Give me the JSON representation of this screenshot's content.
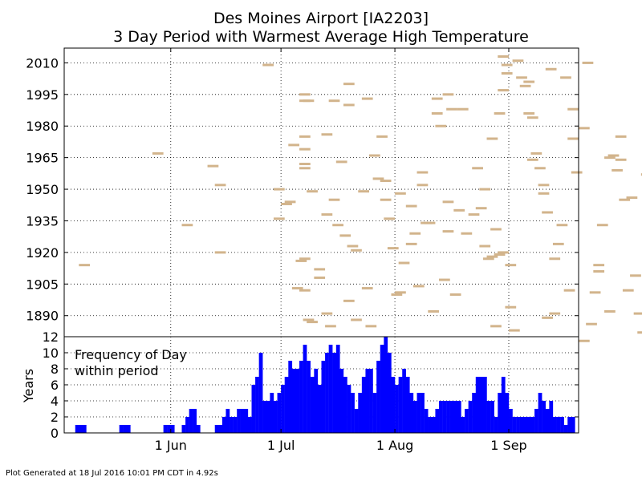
{
  "title_lines": [
    "Des Moines Airport [IA2203]",
    "3 Day Period with Warmest Average High Temperature"
  ],
  "footer": "Plot Generated at 18 Jul 2016 10:01 PM CDT in 4.92s",
  "colors": {
    "period_bar": "#d2b48c",
    "histogram": "#0000ff",
    "grid": "#000000"
  },
  "chart_data": [
    {
      "type": "scatter",
      "marker": "horizontal-bar (3-day period)",
      "x_axis": "day of year",
      "ylim": [
        1880,
        2017
      ],
      "yticks": [
        1890,
        1905,
        1920,
        1935,
        1950,
        1965,
        1980,
        1995,
        2010
      ],
      "ytick_labels": [
        "1890",
        "1905",
        "1920",
        "1935",
        "1950",
        "1965",
        "1980",
        "1995",
        "2010"
      ],
      "grid": true,
      "periods": [
        [
          127,
          1914
        ],
        [
          147,
          1967
        ],
        [
          155,
          1933
        ],
        [
          162,
          1961
        ],
        [
          164,
          1952
        ],
        [
          164,
          1920
        ],
        [
          177,
          2009
        ],
        [
          180,
          1936
        ],
        [
          180,
          1950
        ],
        [
          182,
          1943
        ],
        [
          183,
          1944
        ],
        [
          184,
          1971
        ],
        [
          185,
          1903
        ],
        [
          186,
          1916
        ],
        [
          187,
          1917
        ],
        [
          188,
          1888
        ],
        [
          187,
          1995
        ],
        [
          187,
          1992
        ],
        [
          187,
          1975
        ],
        [
          187,
          1969
        ],
        [
          187,
          1962
        ],
        [
          187,
          1960
        ],
        [
          187,
          1902
        ],
        [
          188,
          1992
        ],
        [
          189,
          1949
        ],
        [
          189,
          1887
        ],
        [
          191,
          1912
        ],
        [
          191,
          1908
        ],
        [
          193,
          1976
        ],
        [
          193,
          1938
        ],
        [
          193,
          1891
        ],
        [
          194,
          1885
        ],
        [
          195,
          1992
        ],
        [
          195,
          1945
        ],
        [
          196,
          1933
        ],
        [
          197,
          1963
        ],
        [
          198,
          1928
        ],
        [
          199,
          1897
        ],
        [
          199,
          2000
        ],
        [
          199,
          1990
        ],
        [
          200,
          1923
        ],
        [
          201,
          1921
        ],
        [
          201,
          1888
        ],
        [
          203,
          1949
        ],
        [
          204,
          1993
        ],
        [
          204,
          1903
        ],
        [
          205,
          1885
        ],
        [
          206,
          1966
        ],
        [
          207,
          1955
        ],
        [
          208,
          1975
        ],
        [
          209,
          1954
        ],
        [
          209,
          1945
        ],
        [
          210,
          1936
        ],
        [
          211,
          1922
        ],
        [
          212,
          1900
        ],
        [
          213,
          1948
        ],
        [
          213,
          1901
        ],
        [
          214,
          1915
        ],
        [
          216,
          1942
        ],
        [
          216,
          1924
        ],
        [
          217,
          1929
        ],
        [
          218,
          1904
        ],
        [
          219,
          1952
        ],
        [
          219,
          1958
        ],
        [
          220,
          1934
        ],
        [
          221,
          1934
        ],
        [
          222,
          1892
        ],
        [
          223,
          1993
        ],
        [
          223,
          1986
        ],
        [
          224,
          1980
        ],
        [
          225,
          1907
        ],
        [
          226,
          1930
        ],
        [
          226,
          1944
        ],
        [
          226,
          1995
        ],
        [
          227,
          1988
        ],
        [
          228,
          1900
        ],
        [
          229,
          1940
        ],
        [
          230,
          1988
        ],
        [
          231,
          1929
        ],
        [
          233,
          1938
        ],
        [
          234,
          1960
        ],
        [
          235,
          1941
        ],
        [
          236,
          1923
        ],
        [
          236,
          1950
        ],
        [
          237,
          1917
        ],
        [
          238,
          1918
        ],
        [
          238,
          1974
        ],
        [
          239,
          1931
        ],
        [
          239,
          1885
        ],
        [
          240,
          1919
        ],
        [
          240,
          1986
        ],
        [
          241,
          1997
        ],
        [
          241,
          1920
        ],
        [
          241,
          2013
        ],
        [
          242,
          2009
        ],
        [
          242,
          2005
        ],
        [
          243,
          1894
        ],
        [
          243,
          1914
        ],
        [
          244,
          1883
        ],
        [
          245,
          2011
        ],
        [
          246,
          2003
        ],
        [
          247,
          1999
        ],
        [
          248,
          1986
        ],
        [
          248,
          2001
        ],
        [
          249,
          1984
        ],
        [
          249,
          1964
        ],
        [
          250,
          1967
        ],
        [
          251,
          1960
        ],
        [
          252,
          1952
        ],
        [
          252,
          1948
        ],
        [
          253,
          1939
        ],
        [
          253,
          1889
        ],
        [
          254,
          2007
        ],
        [
          255,
          1891
        ],
        [
          255,
          1917
        ],
        [
          256,
          1924
        ],
        [
          257,
          1933
        ],
        [
          258,
          2003
        ],
        [
          259,
          1902
        ],
        [
          260,
          1974
        ],
        [
          260,
          1988
        ],
        [
          261,
          1958
        ],
        [
          263,
          1878
        ],
        [
          263,
          1979
        ],
        [
          264,
          2010
        ],
        [
          265,
          1886
        ],
        [
          266,
          1901
        ],
        [
          267,
          1911
        ],
        [
          267,
          1914
        ],
        [
          268,
          1933
        ],
        [
          270,
          1965
        ],
        [
          270,
          1892
        ],
        [
          271,
          1966
        ],
        [
          272,
          1959
        ],
        [
          273,
          1975
        ],
        [
          273,
          1964
        ],
        [
          274,
          1945
        ],
        [
          275,
          1902
        ],
        [
          276,
          1946
        ],
        [
          277,
          1909
        ],
        [
          278,
          1891
        ],
        [
          279,
          1882
        ],
        [
          280,
          1957
        ],
        [
          281,
          1899
        ],
        [
          282,
          1953
        ],
        [
          283,
          1947
        ],
        [
          284,
          1997
        ],
        [
          285,
          1958
        ],
        [
          286,
          1885
        ],
        [
          287,
          1922
        ],
        [
          288,
          2007
        ],
        [
          289,
          1960
        ],
        [
          290,
          1895
        ],
        [
          291,
          1933
        ],
        [
          292,
          2001
        ],
        [
          293,
          1958
        ],
        [
          294,
          1897
        ],
        [
          295,
          1976
        ]
      ]
    },
    {
      "type": "bar",
      "ylabel": "Years",
      "ylim": [
        0,
        12
      ],
      "yticks": [
        0,
        2,
        4,
        6,
        8,
        10,
        12
      ],
      "ytick_labels": [
        "0",
        "2",
        "4",
        "6",
        "8",
        "10",
        "12"
      ],
      "annotation": [
        "Frequency of Day",
        "within period"
      ],
      "xlim_doy": [
        123,
        263
      ],
      "xticks_doy": [
        152,
        182,
        213,
        244
      ],
      "xtick_labels": [
        "1 Jun",
        "1 Jul",
        "1 Aug",
        "1 Sep"
      ],
      "grid": true,
      "x_doy": [
        126,
        127,
        128,
        138,
        139,
        140,
        150,
        151,
        152,
        155,
        156,
        157,
        158,
        159,
        164,
        165,
        166,
        167,
        168,
        169,
        170,
        171,
        172,
        173,
        174,
        175,
        176,
        177,
        178,
        179,
        180,
        181,
        182,
        183,
        184,
        185,
        186,
        187,
        188,
        189,
        190,
        191,
        192,
        193,
        194,
        195,
        196,
        197,
        198,
        199,
        200,
        201,
        202,
        203,
        204,
        205,
        206,
        207,
        208,
        209,
        210,
        211,
        212,
        213,
        214,
        215,
        216,
        217,
        218,
        219,
        220,
        221,
        222,
        223,
        224,
        225,
        226,
        227,
        228,
        229,
        230,
        231,
        232,
        233,
        234,
        235,
        236,
        237,
        238,
        239,
        240,
        241,
        242,
        243,
        244,
        245,
        246,
        247,
        248,
        249,
        250,
        251,
        252,
        253,
        254,
        255,
        256,
        257,
        258,
        259,
        260,
        261
      ],
      "values": [
        1,
        1,
        1,
        1,
        1,
        1,
        1,
        1,
        1,
        1,
        2,
        3,
        3,
        1,
        1,
        1,
        2,
        3,
        2,
        2,
        3,
        3,
        3,
        2,
        6,
        7,
        10,
        4,
        4,
        5,
        4,
        5,
        6,
        7,
        9,
        8,
        8,
        9,
        11,
        9,
        7,
        8,
        6,
        9,
        10,
        11,
        10,
        11,
        8,
        7,
        6,
        5,
        3,
        5,
        7,
        8,
        8,
        5,
        9,
        11,
        12,
        10,
        7,
        6,
        7,
        8,
        7,
        5,
        4,
        5,
        5,
        3,
        2,
        2,
        3,
        4,
        4,
        4,
        4,
        4,
        4,
        2,
        3,
        4,
        5,
        7,
        7,
        7,
        4,
        4,
        2,
        5,
        7,
        5,
        3,
        2,
        2,
        2,
        2,
        2,
        2,
        3,
        5,
        4,
        3,
        4,
        2,
        2,
        2,
        1,
        2,
        2
      ]
    }
  ]
}
